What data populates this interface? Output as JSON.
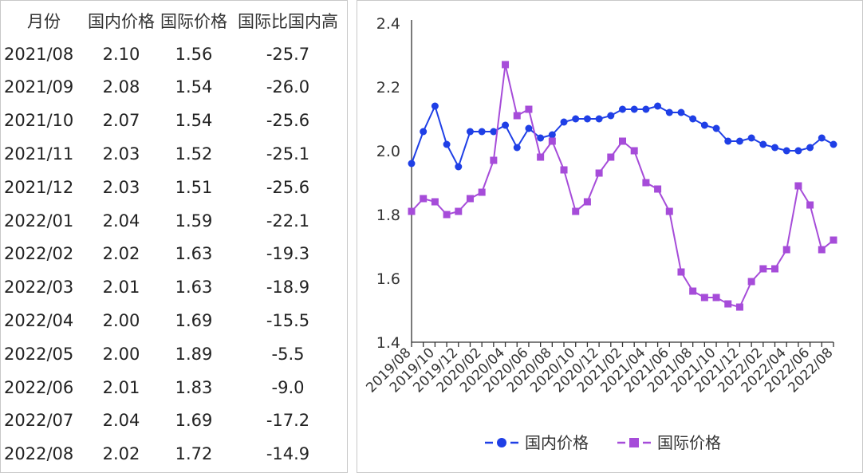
{
  "table": {
    "headers": [
      "月份",
      "国内价格",
      "国际价格",
      "国际比国内高"
    ],
    "rows": [
      [
        "2021/08",
        "2.10",
        "1.56",
        "-25.7"
      ],
      [
        "2021/09",
        "2.08",
        "1.54",
        "-26.0"
      ],
      [
        "2021/10",
        "2.07",
        "1.54",
        "-25.6"
      ],
      [
        "2021/11",
        "2.03",
        "1.52",
        "-25.1"
      ],
      [
        "2021/12",
        "2.03",
        "1.51",
        "-25.6"
      ],
      [
        "2022/01",
        "2.04",
        "1.59",
        "-22.1"
      ],
      [
        "2022/02",
        "2.02",
        "1.63",
        "-19.3"
      ],
      [
        "2022/03",
        "2.01",
        "1.63",
        "-18.9"
      ],
      [
        "2022/04",
        "2.00",
        "1.69",
        "-15.5"
      ],
      [
        "2022/05",
        "2.00",
        "1.89",
        "-5.5"
      ],
      [
        "2022/06",
        "2.01",
        "1.83",
        "-9.0"
      ],
      [
        "2022/07",
        "2.04",
        "1.69",
        "-17.2"
      ],
      [
        "2022/08",
        "2.02",
        "1.72",
        "-14.9"
      ]
    ]
  },
  "chart_data": {
    "type": "line",
    "title": "",
    "xlabel": "",
    "ylabel": "",
    "ylim": [
      1.4,
      2.4
    ],
    "yticks": [
      "1.4",
      "1.6",
      "1.8",
      "2.0",
      "2.2",
      "2.4"
    ],
    "x": [
      "2019/08",
      "2019/09",
      "2019/10",
      "2019/11",
      "2019/12",
      "2020/01",
      "2020/02",
      "2020/03",
      "2020/04",
      "2020/05",
      "2020/06",
      "2020/07",
      "2020/08",
      "2020/09",
      "2020/10",
      "2020/11",
      "2020/12",
      "2021/01",
      "2021/02",
      "2021/03",
      "2021/04",
      "2021/05",
      "2021/06",
      "2021/07",
      "2021/08",
      "2021/09",
      "2021/10",
      "2021/11",
      "2021/12",
      "2022/01",
      "2022/02",
      "2022/03",
      "2022/04",
      "2022/05",
      "2022/06",
      "2022/07",
      "2022/08"
    ],
    "xtick_labels": [
      "2019/08",
      "2019/10",
      "2019/12",
      "2020/02",
      "2020/04",
      "2020/06",
      "2020/08",
      "2020/10",
      "2020/12",
      "2021/02",
      "2021/04",
      "2021/06",
      "2021/08",
      "2021/10",
      "2021/12",
      "2022/02",
      "2022/04",
      "2022/06",
      "2022/08"
    ],
    "grid": false,
    "legend": "bottom",
    "series": [
      {
        "name": "国内价格",
        "color": "#1f3fe6",
        "marker": "circle",
        "values": [
          1.96,
          2.06,
          2.14,
          2.02,
          1.95,
          2.06,
          2.06,
          2.06,
          2.08,
          2.01,
          2.07,
          2.04,
          2.05,
          2.09,
          2.1,
          2.1,
          2.1,
          2.11,
          2.13,
          2.13,
          2.13,
          2.14,
          2.12,
          2.12,
          2.1,
          2.08,
          2.07,
          2.03,
          2.03,
          2.04,
          2.02,
          2.01,
          2.0,
          2.0,
          2.01,
          2.04,
          2.02
        ]
      },
      {
        "name": "国际价格",
        "color": "#a64cd9",
        "marker": "square",
        "values": [
          1.81,
          1.85,
          1.84,
          1.8,
          1.81,
          1.85,
          1.87,
          1.97,
          2.27,
          2.11,
          2.13,
          1.98,
          2.03,
          1.94,
          1.81,
          1.84,
          1.93,
          1.98,
          2.03,
          2.0,
          1.9,
          1.88,
          1.81,
          1.62,
          1.56,
          1.54,
          1.54,
          1.52,
          1.51,
          1.59,
          1.63,
          1.63,
          1.69,
          1.89,
          1.83,
          1.69,
          1.72
        ]
      }
    ]
  }
}
